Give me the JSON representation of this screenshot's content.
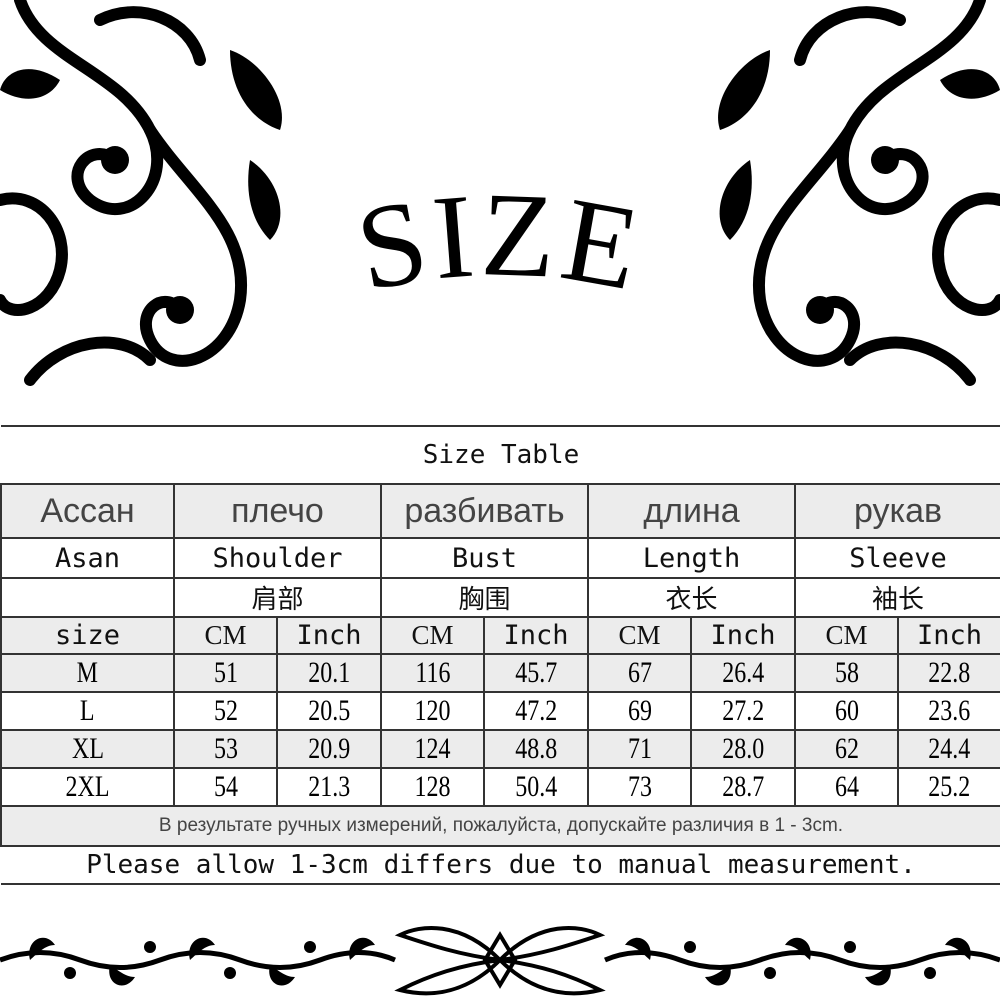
{
  "heading": "SIZE",
  "table": {
    "title": "Size Table",
    "russian_headers": [
      "Ассан",
      "плечо",
      "разбивать",
      "длина",
      "рукав"
    ],
    "english_headers": [
      "Asan",
      "Shoulder",
      "Bust",
      "Length",
      "Sleeve"
    ],
    "chinese_headers": [
      "",
      "肩部",
      "胸围",
      "衣长",
      "袖长"
    ],
    "unit_row": [
      "size",
      "CM",
      "Inch",
      "CM",
      "Inch",
      "CM",
      "Inch",
      "CM",
      "Inch"
    ],
    "rows": [
      [
        "M",
        "51",
        "20.1",
        "116",
        "45.7",
        "67",
        "26.4",
        "58",
        "22.8"
      ],
      [
        "L",
        "52",
        "20.5",
        "120",
        "47.2",
        "69",
        "27.2",
        "60",
        "23.6"
      ],
      [
        "XL",
        "53",
        "20.9",
        "124",
        "48.8",
        "71",
        "28.0",
        "62",
        "24.4"
      ],
      [
        "2XL",
        "54",
        "21.3",
        "128",
        "50.4",
        "73",
        "28.7",
        "64",
        "25.2"
      ]
    ],
    "note_russian": "В результате ручных измерений, пожалуйста, допускайте различия в 1 - 3cm.",
    "note_english": "Please allow 1-3cm differs due to manual measurement."
  },
  "colors": {
    "ink": "#111111",
    "header_gray": "#ececec",
    "border": "#333333"
  }
}
